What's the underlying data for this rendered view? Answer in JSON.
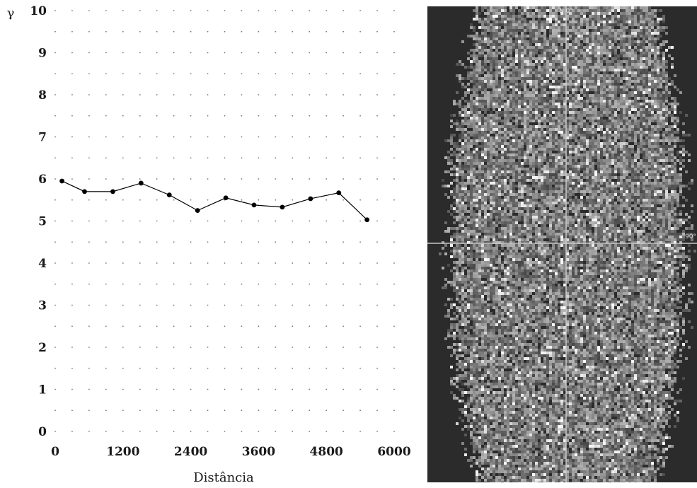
{
  "chart_data": {
    "type": "line",
    "title": "",
    "ylabel": "γ",
    "xlabel": "Distância",
    "x": [
      120,
      520,
      1020,
      1520,
      2020,
      2520,
      3020,
      3520,
      4020,
      4520,
      5020,
      5520
    ],
    "series": [
      {
        "values": [
          5.95,
          5.7,
          5.7,
          5.9,
          5.62,
          5.25,
          5.55,
          5.38,
          5.33,
          5.53,
          5.67,
          5.03
        ]
      }
    ],
    "xlim": [
      0,
      6000
    ],
    "ylim": [
      0,
      10
    ],
    "x_ticks": [
      "0",
      "1200",
      "2400",
      "3600",
      "4800",
      "6000"
    ],
    "y_ticks": [
      "0",
      "1",
      "2",
      "3",
      "4",
      "5",
      "6",
      "7",
      "8",
      "9",
      "10"
    ],
    "grid": true,
    "grid_style": "dotted",
    "line_color": "#000000",
    "marker": "filled-circle"
  },
  "map": {
    "top_label": "N 0°",
    "right_label": "90°",
    "background_color": "#2b2b2b",
    "crosshair_color": "#c8c8c8"
  }
}
